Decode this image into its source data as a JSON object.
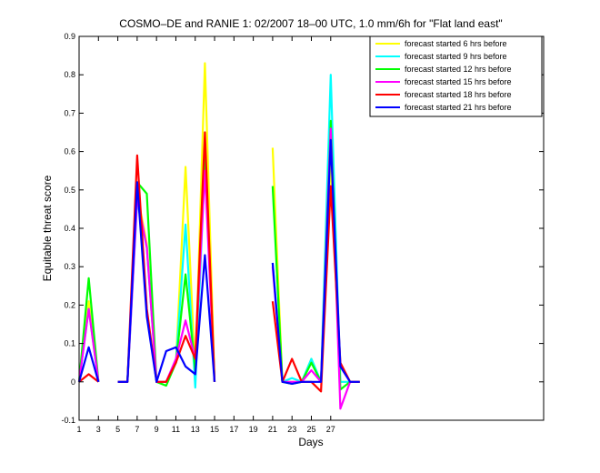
{
  "chart_data": {
    "type": "line",
    "title": "COSMO–DE and RANIE 1: 02/2007 18–00 UTC, 1.0 mm/6h for \"Flat land east\"",
    "xlabel": "Days",
    "ylabel": "Equitable threat score",
    "xlim": [
      1,
      49
    ],
    "ylim": [
      -0.1,
      0.9
    ],
    "xticks": [
      1,
      3,
      5,
      7,
      9,
      11,
      13,
      15,
      17,
      19,
      21,
      23,
      25,
      27
    ],
    "yticks": [
      -0.1,
      0,
      0.1,
      0.2,
      0.3,
      0.4,
      0.5,
      0.6,
      0.7,
      0.8,
      0.9
    ],
    "grid": false,
    "legend_position": "top-right",
    "series": [
      {
        "name": "forecast started 6 hrs before",
        "color": "#ffff00",
        "points": [
          [
            1,
            0
          ],
          [
            2,
            0.21
          ],
          [
            3,
            0
          ],
          null,
          [
            5,
            0
          ],
          [
            6,
            0
          ],
          [
            7,
            0.49
          ],
          [
            8,
            0.36
          ],
          [
            9,
            0
          ],
          [
            10,
            0
          ],
          [
            11,
            0.05
          ],
          [
            12,
            0.56
          ],
          [
            13,
            0.02
          ],
          [
            14,
            0.83
          ],
          [
            15,
            0
          ],
          null,
          [
            21,
            0.61
          ],
          [
            22,
            0
          ],
          [
            23,
            0
          ],
          [
            24,
            0
          ],
          [
            25,
            0.06
          ],
          [
            26,
            0
          ],
          [
            27,
            0.58
          ],
          [
            28,
            0
          ],
          [
            29,
            0
          ],
          [
            30,
            0
          ]
        ]
      },
      {
        "name": "forecast started 9 hrs before",
        "color": "#00ffff",
        "points": [
          [
            1,
            0
          ],
          [
            2,
            0.19
          ],
          [
            3,
            0
          ],
          null,
          [
            5,
            0
          ],
          [
            6,
            0
          ],
          [
            7,
            0.47
          ],
          [
            8,
            0.35
          ],
          [
            9,
            0
          ],
          [
            10,
            0
          ],
          [
            11,
            0.05
          ],
          [
            12,
            0.41
          ],
          [
            13,
            -0.015
          ],
          [
            14,
            0.57
          ],
          [
            15,
            0
          ],
          null,
          [
            21,
            0.31
          ],
          [
            22,
            0
          ],
          [
            23,
            0.01
          ],
          [
            24,
            0
          ],
          [
            25,
            0.06
          ],
          [
            26,
            0
          ],
          [
            27,
            0.8
          ],
          [
            28,
            0
          ],
          [
            29,
            0
          ],
          [
            30,
            0
          ]
        ]
      },
      {
        "name": "forecast started 12 hrs before",
        "color": "#00ff00",
        "points": [
          [
            1,
            0
          ],
          [
            2,
            0.27
          ],
          [
            3,
            0
          ],
          null,
          [
            5,
            0
          ],
          [
            6,
            0
          ],
          [
            7,
            0.52
          ],
          [
            8,
            0.49
          ],
          [
            9,
            0
          ],
          [
            10,
            -0.01
          ],
          [
            11,
            0.05
          ],
          [
            12,
            0.28
          ],
          [
            13,
            0.03
          ],
          [
            14,
            0.61
          ],
          [
            15,
            0
          ],
          null,
          [
            21,
            0.51
          ],
          [
            22,
            0
          ],
          [
            23,
            -0.005
          ],
          [
            24,
            0
          ],
          [
            25,
            0.05
          ],
          [
            26,
            0
          ],
          [
            27,
            0.68
          ],
          [
            28,
            -0.02
          ],
          [
            29,
            0
          ],
          [
            30,
            0
          ]
        ]
      },
      {
        "name": "forecast started 15 hrs before",
        "color": "#ff00ff",
        "points": [
          [
            1,
            0
          ],
          [
            2,
            0.19
          ],
          [
            3,
            0
          ],
          null,
          [
            5,
            0
          ],
          [
            6,
            0
          ],
          [
            7,
            0.48
          ],
          [
            8,
            0.35
          ],
          [
            9,
            0
          ],
          [
            10,
            0
          ],
          [
            11,
            0.06
          ],
          [
            12,
            0.16
          ],
          [
            13,
            0.06
          ],
          [
            14,
            0.55
          ],
          [
            15,
            0
          ],
          null,
          [
            21,
            0.3
          ],
          [
            22,
            0
          ],
          [
            23,
            0
          ],
          [
            24,
            0
          ],
          [
            25,
            0.03
          ],
          [
            26,
            0
          ],
          [
            27,
            0.66
          ],
          [
            28,
            -0.07
          ],
          [
            29,
            0
          ],
          [
            30,
            0
          ]
        ]
      },
      {
        "name": "forecast started 18 hrs before",
        "color": "#ff0000",
        "points": [
          [
            1,
            0
          ],
          [
            2,
            0.02
          ],
          [
            3,
            0
          ],
          null,
          [
            5,
            0
          ],
          [
            6,
            0
          ],
          [
            7,
            0.59
          ],
          [
            8,
            0.19
          ],
          [
            9,
            0
          ],
          [
            10,
            0
          ],
          [
            11,
            0.05
          ],
          [
            12,
            0.12
          ],
          [
            13,
            0.06
          ],
          [
            14,
            0.65
          ],
          [
            15,
            0
          ],
          null,
          [
            21,
            0.21
          ],
          [
            22,
            0
          ],
          [
            23,
            0.06
          ],
          [
            24,
            0
          ],
          [
            25,
            0
          ],
          [
            26,
            -0.025
          ],
          [
            27,
            0.51
          ],
          [
            28,
            0.05
          ],
          [
            29,
            0
          ],
          [
            30,
            0
          ]
        ]
      },
      {
        "name": "forecast started 21 hrs before",
        "color": "#0000ff",
        "points": [
          [
            1,
            0
          ],
          [
            2,
            0.09
          ],
          [
            3,
            0
          ],
          null,
          [
            5,
            0
          ],
          [
            6,
            0
          ],
          [
            7,
            0.52
          ],
          [
            8,
            0.17
          ],
          [
            9,
            0
          ],
          [
            10,
            0.08
          ],
          [
            11,
            0.09
          ],
          [
            12,
            0.04
          ],
          [
            13,
            0.02
          ],
          [
            14,
            0.33
          ],
          [
            15,
            0
          ],
          null,
          [
            21,
            0.31
          ],
          [
            22,
            0
          ],
          [
            23,
            -0.005
          ],
          [
            24,
            0
          ],
          [
            25,
            0
          ],
          [
            26,
            0
          ],
          [
            27,
            0.63
          ],
          [
            28,
            0.04
          ],
          [
            29,
            0
          ],
          [
            30,
            0
          ]
        ]
      }
    ]
  }
}
